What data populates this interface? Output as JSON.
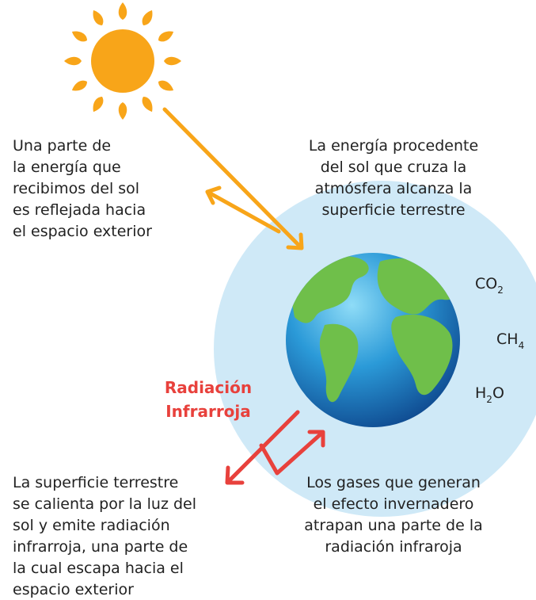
{
  "reflected_note": {
    "lines": [
      "Una parte de",
      "la energía que",
      "recibimos del sol",
      "es reflejada hacia",
      "el espacio exterior"
    ]
  },
  "incoming_note": {
    "lines": [
      "La energía procedente",
      "del sol que cruza la",
      "atmósfera alcanza la",
      "superficie terrestre"
    ]
  },
  "gases": [
    [
      "CO",
      "2"
    ],
    [
      "CH",
      "4"
    ],
    [
      "H",
      "2",
      "O"
    ]
  ],
  "radiation_label": {
    "lines": [
      "Radiación",
      "Infrarroja"
    ]
  },
  "escape_note": {
    "lines": [
      "La superficie terrestre",
      "se calienta por la luz del",
      "sol y emite radiación",
      "infrarroja, una parte de",
      "la cual escapa hacia el",
      "espacio exterior"
    ]
  },
  "trapped_note": {
    "lines": [
      "Los gases que generan",
      "el efecto invernadero",
      "atrapan una parte de la",
      "radiación infraroja"
    ]
  }
}
